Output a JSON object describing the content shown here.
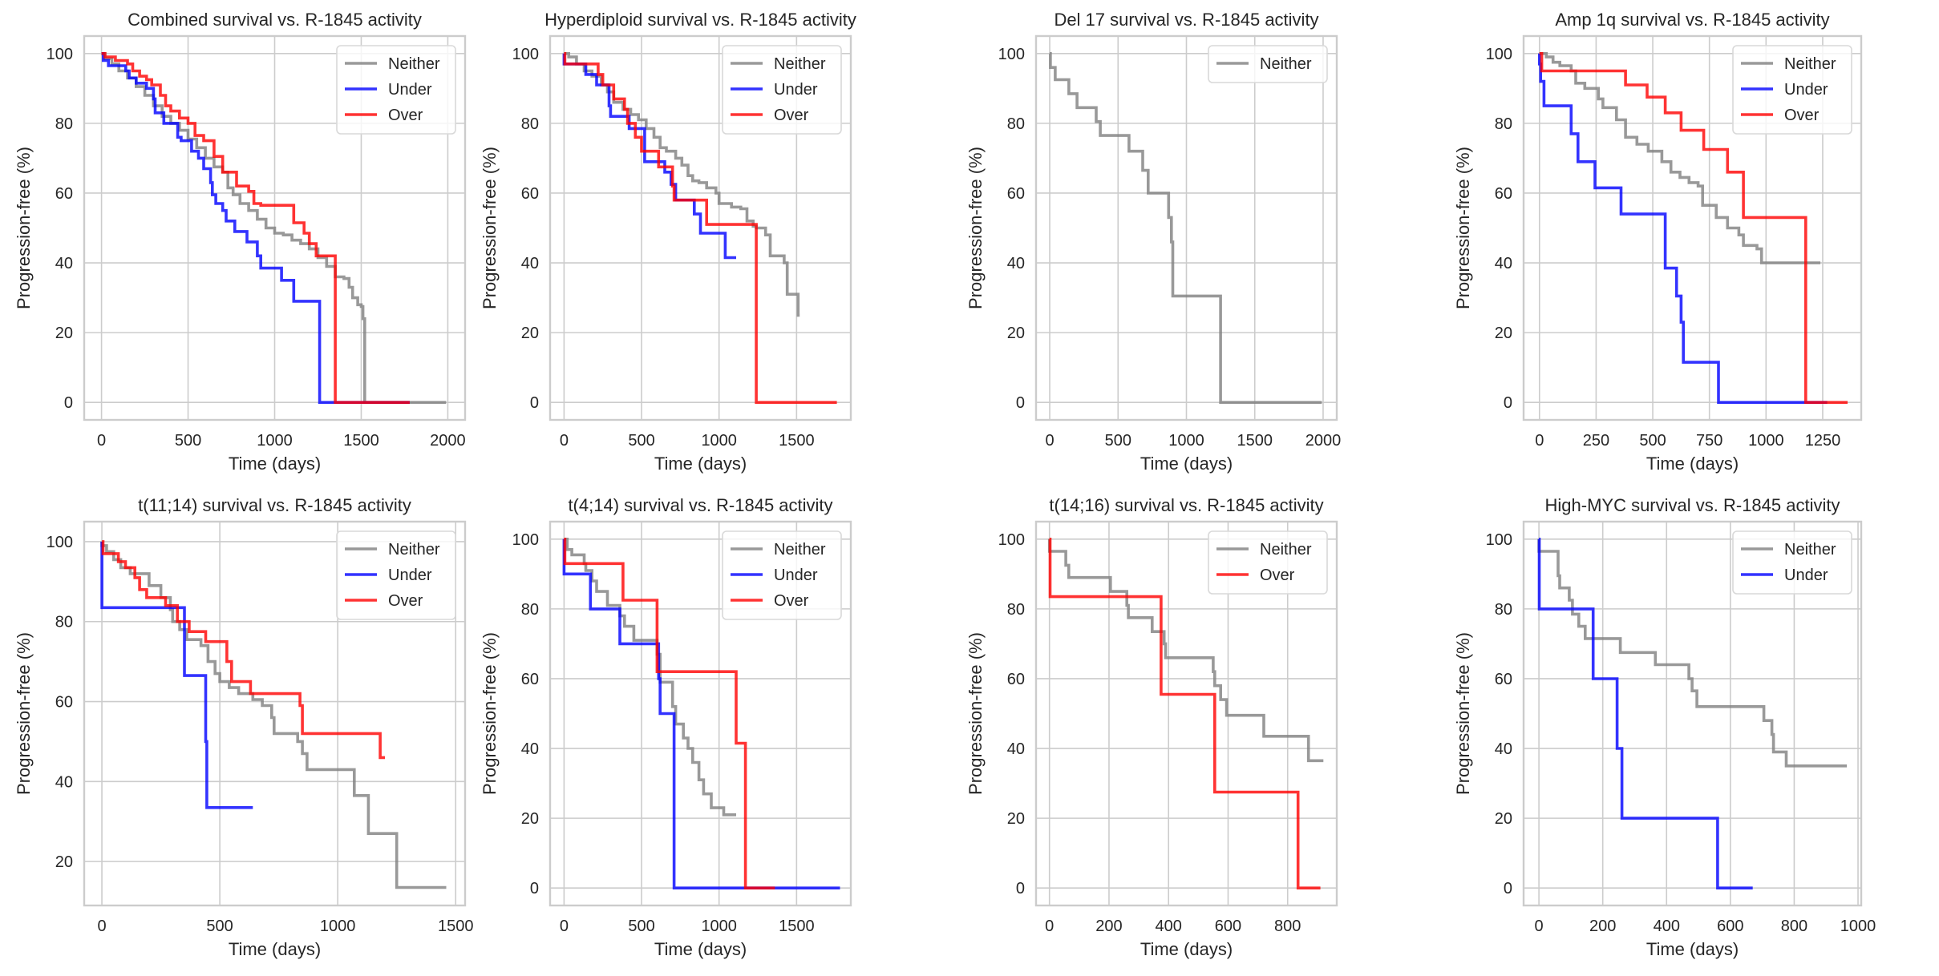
{
  "figure": {
    "colors": {
      "Neither": "#808080",
      "Under": "#0000ff",
      "Over": "#ff0000"
    }
  },
  "chart_data": [
    {
      "type": "line",
      "title": "Combined survival vs. R-1845 activity",
      "xlabel": "Time (days)",
      "ylabel": "Progression-free (%)",
      "xlim": [
        -100,
        2100
      ],
      "ylim": [
        -5,
        105
      ],
      "xticks": [
        0,
        500,
        1000,
        1500,
        2000
      ],
      "yticks": [
        0,
        20,
        40,
        60,
        80,
        100
      ],
      "grid": true,
      "legend": "top-right",
      "series": [
        {
          "name": "Neither",
          "step": true,
          "x": [
            0,
            20,
            60,
            100,
            150,
            200,
            250,
            300,
            350,
            400,
            450,
            500,
            550,
            600,
            650,
            700,
            730,
            760,
            800,
            850,
            900,
            950,
            1000,
            1050,
            1100,
            1150,
            1200,
            1250,
            1300,
            1350,
            1400,
            1430,
            1450,
            1480,
            1500,
            1510,
            1520,
            1990
          ],
          "y": [
            100,
            98.5,
            97,
            95,
            93,
            90.5,
            88,
            85,
            82,
            80,
            78,
            75.5,
            73,
            70,
            67.5,
            66,
            61.5,
            59.5,
            57,
            55,
            52.5,
            50,
            48.5,
            48,
            46.5,
            45.5,
            44,
            41.5,
            39,
            36,
            35.5,
            33,
            30,
            28,
            27.5,
            24,
            0,
            0
          ]
        },
        {
          "name": "Under",
          "step": true,
          "x": [
            0,
            10,
            40,
            140,
            160,
            200,
            260,
            300,
            310,
            360,
            440,
            460,
            520,
            560,
            590,
            630,
            640,
            660,
            700,
            720,
            770,
            840,
            900,
            920,
            1040,
            1110,
            1260,
            1780
          ],
          "y": [
            100,
            98,
            96.5,
            95,
            93,
            91.5,
            90,
            87,
            83,
            80,
            76,
            75,
            72,
            70,
            67,
            63,
            59.5,
            57,
            55,
            52,
            49,
            46,
            42,
            38.5,
            35,
            29,
            0,
            0
          ]
        },
        {
          "name": "Over",
          "step": true,
          "x": [
            0,
            20,
            80,
            150,
            180,
            220,
            260,
            290,
            340,
            370,
            400,
            450,
            500,
            540,
            590,
            650,
            700,
            780,
            850,
            880,
            920,
            1110,
            1170,
            1200,
            1240,
            1350,
            1780
          ],
          "y": [
            100,
            99,
            98,
            97,
            95,
            93.5,
            92.5,
            91,
            88,
            85,
            83.5,
            81.5,
            80,
            76.5,
            75,
            70.5,
            66,
            62,
            60.5,
            57,
            56.5,
            51.5,
            48.5,
            45.5,
            42,
            0,
            0
          ]
        }
      ]
    },
    {
      "type": "line",
      "title": "Hyperdiploid survival vs. R-1845 activity",
      "xlabel": "Time (days)",
      "ylabel": "Progression-free (%)",
      "xlim": [
        -90,
        1850
      ],
      "ylim": [
        -5,
        105
      ],
      "xticks": [
        0,
        500,
        1000,
        1500
      ],
      "yticks": [
        0,
        20,
        40,
        60,
        80,
        100
      ],
      "grid": true,
      "legend": "top-right",
      "series": [
        {
          "name": "Neither",
          "step": true,
          "x": [
            0,
            30,
            80,
            130,
            180,
            240,
            280,
            320,
            380,
            430,
            480,
            530,
            580,
            620,
            660,
            720,
            760,
            800,
            830,
            870,
            920,
            980,
            1000,
            1080,
            1140,
            1180,
            1220,
            1240,
            1300,
            1330,
            1420,
            1440,
            1510,
            1520
          ],
          "y": [
            100,
            99,
            97,
            95,
            93.5,
            91,
            89,
            86,
            84,
            82.5,
            81,
            78.5,
            76,
            73,
            72,
            70,
            68,
            65,
            63.5,
            63,
            61.5,
            60,
            57,
            56,
            55.5,
            52,
            50.5,
            50,
            48,
            42,
            40,
            31,
            25,
            25
          ]
        },
        {
          "name": "Under",
          "step": true,
          "x": [
            0,
            140,
            210,
            290,
            300,
            420,
            520,
            650,
            690,
            720,
            840,
            880,
            1040,
            1110
          ],
          "y": [
            97,
            94,
            91,
            85,
            82,
            78.5,
            69,
            66,
            62.5,
            58,
            54,
            48.5,
            41.5,
            41.5
          ]
        },
        {
          "name": "Over",
          "step": true,
          "x": [
            0,
            5,
            220,
            250,
            320,
            390,
            410,
            460,
            500,
            610,
            700,
            710,
            720,
            920,
            1240,
            1760
          ],
          "y": [
            100,
            97,
            94,
            91,
            87,
            84,
            80,
            76,
            72,
            67.5,
            62,
            58,
            58,
            51,
            0,
            0
          ]
        }
      ]
    },
    {
      "type": "line",
      "title": "Del 17 survival vs. R-1845 activity",
      "xlabel": "Time (days)",
      "ylabel": "Progression-free (%)",
      "xlim": [
        -100,
        2100
      ],
      "ylim": [
        -5,
        105
      ],
      "xticks": [
        0,
        500,
        1000,
        1500,
        2000
      ],
      "yticks": [
        0,
        20,
        40,
        60,
        80,
        100
      ],
      "grid": true,
      "legend": "top-right",
      "series": [
        {
          "name": "Neither",
          "step": true,
          "x": [
            0,
            5,
            40,
            140,
            200,
            340,
            370,
            580,
            680,
            720,
            870,
            890,
            900,
            1250,
            1990
          ],
          "y": [
            100,
            96,
            92.5,
            88.5,
            84.5,
            80.5,
            76.5,
            72,
            66.5,
            60,
            53,
            46,
            30.5,
            0,
            0
          ]
        }
      ]
    },
    {
      "type": "line",
      "title": "Amp 1q survival vs. R-1845 activity",
      "xlabel": "Time (days)",
      "ylabel": "Progression-free (%)",
      "xlim": [
        -70,
        1420
      ],
      "ylim": [
        -5,
        105
      ],
      "xticks": [
        0,
        250,
        500,
        750,
        1000,
        1250
      ],
      "yticks": [
        0,
        20,
        40,
        60,
        80,
        100
      ],
      "grid": true,
      "legend": "top-right",
      "series": [
        {
          "name": "Neither",
          "step": true,
          "x": [
            0,
            30,
            60,
            90,
            140,
            160,
            200,
            260,
            280,
            340,
            380,
            430,
            480,
            540,
            580,
            620,
            660,
            700,
            720,
            780,
            830,
            880,
            900,
            960,
            980,
            1240
          ],
          "y": [
            100,
            99,
            97.5,
            96.5,
            95,
            91.5,
            90,
            87,
            84.5,
            81,
            76,
            74,
            72,
            69,
            66,
            64.5,
            63,
            62,
            56.5,
            53,
            50,
            48,
            45,
            44,
            40,
            40
          ]
        },
        {
          "name": "Under",
          "step": true,
          "x": [
            0,
            5,
            20,
            140,
            170,
            245,
            360,
            555,
            605,
            625,
            635,
            790,
            1270
          ],
          "y": [
            97,
            92,
            85,
            77,
            69,
            61.5,
            54,
            38.5,
            30.5,
            23,
            11.5,
            0,
            0
          ]
        },
        {
          "name": "Over",
          "step": true,
          "x": [
            0,
            10,
            380,
            475,
            555,
            625,
            725,
            830,
            900,
            1175,
            1360
          ],
          "y": [
            100,
            95,
            91,
            87.5,
            83,
            78,
            72.5,
            66,
            53,
            0,
            0
          ]
        }
      ]
    },
    {
      "type": "line",
      "title": "t(11;14) survival vs. R-1845 activity",
      "xlabel": "Time (days)",
      "ylabel": "Progression-free (%)",
      "xlim": [
        -75,
        1540
      ],
      "ylim": [
        9,
        105
      ],
      "xticks": [
        0,
        500,
        1000,
        1500
      ],
      "yticks": [
        20,
        40,
        60,
        80,
        100
      ],
      "grid": true,
      "legend": "top-right",
      "series": [
        {
          "name": "Neither",
          "step": true,
          "x": [
            0,
            20,
            50,
            80,
            120,
            200,
            250,
            290,
            300,
            330,
            360,
            420,
            450,
            480,
            500,
            540,
            580,
            640,
            680,
            720,
            730,
            830,
            850,
            870,
            1070,
            1130,
            1250,
            1460
          ],
          "y": [
            99,
            97.5,
            95.5,
            93.5,
            92,
            89,
            86,
            83,
            80,
            78,
            75.5,
            74,
            70,
            67,
            65,
            63.5,
            62,
            60.5,
            59,
            56,
            52,
            50,
            47,
            43,
            36.5,
            27,
            13.5,
            13.5
          ]
        },
        {
          "name": "Under",
          "step": true,
          "x": [
            0,
            350,
            440,
            445,
            640
          ],
          "y": [
            83.5,
            66.5,
            50,
            33.5,
            33.5
          ]
        },
        {
          "name": "Over",
          "step": true,
          "x": [
            0,
            5,
            70,
            100,
            140,
            160,
            190,
            270,
            320,
            370,
            440,
            530,
            550,
            630,
            840,
            850,
            1180,
            1200
          ],
          "y": [
            100,
            97,
            95,
            93.5,
            91,
            88,
            86,
            84,
            80,
            77.5,
            75,
            70,
            65,
            62,
            59,
            52,
            46,
            46
          ]
        }
      ]
    },
    {
      "type": "line",
      "title": "t(4;14) survival vs. R-1845 activity",
      "xlabel": "Time (days)",
      "ylabel": "Progression-free (%)",
      "xlim": [
        -90,
        1850
      ],
      "ylim": [
        -5,
        105
      ],
      "xticks": [
        0,
        500,
        1000,
        1500
      ],
      "yticks": [
        0,
        20,
        40,
        60,
        80,
        100
      ],
      "grid": true,
      "legend": "top-right",
      "series": [
        {
          "name": "Neither",
          "step": true,
          "x": [
            0,
            20,
            50,
            130,
            140,
            180,
            210,
            280,
            360,
            390,
            450,
            600,
            620,
            700,
            720,
            770,
            800,
            830,
            870,
            900,
            950,
            1030,
            1110
          ],
          "y": [
            100,
            97,
            95.5,
            93,
            91,
            88,
            85,
            81,
            78,
            75,
            71,
            67,
            59,
            52,
            47,
            43,
            40,
            36,
            31,
            27,
            23,
            21,
            21
          ]
        },
        {
          "name": "Under",
          "step": true,
          "x": [
            0,
            170,
            360,
            610,
            620,
            710,
            1780
          ],
          "y": [
            90,
            80,
            70,
            60,
            50,
            0,
            0
          ]
        },
        {
          "name": "Over",
          "step": true,
          "x": [
            0,
            5,
            380,
            600,
            1110,
            1170,
            1360
          ],
          "y": [
            100,
            93,
            82.5,
            62,
            41.5,
            0,
            0
          ]
        }
      ]
    },
    {
      "type": "line",
      "title": "t(14;16) survival vs. R-1845 activity",
      "xlabel": "Time (days)",
      "ylabel": "Progression-free (%)",
      "xlim": [
        -45,
        965
      ],
      "ylim": [
        -5,
        105
      ],
      "xticks": [
        0,
        200,
        400,
        600,
        800
      ],
      "yticks": [
        0,
        20,
        40,
        60,
        80,
        100
      ],
      "grid": true,
      "legend": "top-right",
      "series": [
        {
          "name": "Neither",
          "step": true,
          "x": [
            0,
            55,
            65,
            205,
            260,
            265,
            345,
            385,
            390,
            550,
            555,
            575,
            595,
            720,
            870,
            920
          ],
          "y": [
            96.5,
            92.5,
            89,
            85,
            81,
            77.5,
            73.5,
            70,
            66,
            62,
            58,
            54,
            49.5,
            43.5,
            36.5,
            36.5
          ]
        },
        {
          "name": "Over",
          "step": true,
          "x": [
            0,
            2,
            375,
            555,
            835,
            910
          ],
          "y": [
            100,
            83.5,
            55.5,
            27.5,
            0,
            0
          ]
        }
      ]
    },
    {
      "type": "line",
      "title": "High-MYC survival vs. R-1845 activity",
      "xlabel": "Time (days)",
      "ylabel": "Progression-free (%)",
      "xlim": [
        -48,
        1010
      ],
      "ylim": [
        -5,
        105
      ],
      "xticks": [
        0,
        200,
        400,
        600,
        800,
        1000
      ],
      "yticks": [
        0,
        20,
        40,
        60,
        80,
        100
      ],
      "grid": true,
      "legend": "top-right",
      "series": [
        {
          "name": "Neither",
          "step": true,
          "x": [
            0,
            60,
            65,
            95,
            105,
            125,
            145,
            255,
            365,
            470,
            480,
            495,
            705,
            730,
            735,
            775,
            965
          ],
          "y": [
            96.5,
            89.5,
            86,
            82.5,
            78.5,
            75,
            71.5,
            67.5,
            64,
            60,
            56.5,
            52,
            48,
            44,
            39,
            35,
            35
          ]
        },
        {
          "name": "Under",
          "step": true,
          "x": [
            0,
            1,
            170,
            245,
            260,
            560,
            670
          ],
          "y": [
            100,
            80,
            60,
            40,
            20,
            0,
            0
          ]
        }
      ]
    }
  ]
}
